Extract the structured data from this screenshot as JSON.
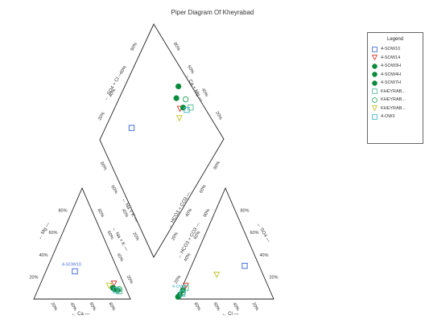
{
  "chart_data": {
    "type": "scatter",
    "subtype": "piper-diagram",
    "title": "Piper Diagram Of Kheyrabad",
    "ticks": {
      "percent": [
        "20%",
        "40%",
        "60%",
        "80%"
      ],
      "cation_left": [
        "80%",
        "60%",
        "40%",
        "20%"
      ],
      "cation_right": [
        "20%",
        "40%",
        "60%",
        "80%"
      ],
      "cation_bottom": [
        "20%",
        "40%",
        "60%",
        "80%"
      ],
      "anion_left": [
        "20%",
        "40%",
        "60%",
        "80%"
      ],
      "anion_right": [
        "20%",
        "40%",
        "60%",
        "80%"
      ],
      "anion_bottom": [
        "80%",
        "60%",
        "40%",
        "20%"
      ],
      "diamond_upper_left": [
        "20%",
        "40%",
        "60%",
        "80%"
      ],
      "diamond_upper_right": [
        "80%",
        "60%",
        "40%",
        "20%"
      ],
      "diamond_lower_left": [
        "80%",
        "60%",
        "40%",
        "20%"
      ],
      "diamond_lower_right": [
        "20%",
        "40%",
        "60%",
        "80%"
      ]
    },
    "axis_labels": {
      "cation_bottom": "Ca",
      "cation_left": "Mg",
      "cation_right": "Na + K",
      "anion_bottom": "Cl",
      "anion_left": "HCO3 + CO3",
      "anion_right": "SO4",
      "diamond_upper_left": "SO4 + Cl",
      "diamond_upper_right": "Ca + Mg",
      "diamond_lower_left": "Na + K",
      "diamond_lower_right": "HCO3 + CO3"
    },
    "series": [
      {
        "name": "4-SOW10",
        "marker": "square-open",
        "color": "#4a6fd8",
        "cation": {
          "Ca": 45,
          "Mg": 25
        },
        "anion": {
          "Cl": 55,
          "SO4": 30
        },
        "diamond": {
          "NaK": 30,
          "SO4Cl": 80
        }
      },
      {
        "name": "4-SOW14",
        "marker": "triangle-down-open",
        "color": "#d8463a",
        "cation": {
          "Ca": 10,
          "Mg": 14
        },
        "anion": {
          "Cl": 3,
          "SO4": 12
        },
        "diamond": {
          "NaK": 76,
          "SO4Cl": 50
        }
      },
      {
        "name": "4-SOW3H",
        "marker": "circle-filled",
        "color": "#0a8a3c",
        "cation": {
          "Ca": 13,
          "Mg": 10
        },
        "anion": {
          "Cl": 2,
          "SO4": 8
        },
        "diamond": {
          "NaK": 77,
          "SO4Cl": 58
        }
      },
      {
        "name": "4-SOW4H",
        "marker": "circle-filled",
        "color": "#0a8a3c",
        "cation": {
          "Ca": 12,
          "Mg": 9
        },
        "anion": {
          "Cl": 1,
          "SO4": 4
        },
        "diamond": {
          "NaK": 79,
          "SO4Cl": 48
        }
      },
      {
        "name": "4-SOW7H",
        "marker": "circle-filled",
        "color": "#0a8a3c",
        "cation": {
          "Ca": 9,
          "Mg": 8
        },
        "anion": {
          "Cl": 0,
          "SO4": 2
        },
        "diamond": {
          "NaK": 83,
          "SO4Cl": 62
        }
      },
      {
        "name": "KHEYRAB...",
        "marker": "square-open",
        "color": "#5fbf9a",
        "cation": {
          "Ca": 8,
          "Mg": 7
        },
        "anion": {
          "Cl": 4,
          "SO4": 10
        },
        "diamond": {
          "NaK": 85,
          "SO4Cl": 42
        }
      },
      {
        "name": "KHEYRAB...",
        "marker": "circle-open",
        "color": "#3aa86a",
        "cation": {
          "Ca": 7,
          "Mg": 9
        },
        "anion": {
          "Cl": 3,
          "SO4": 6
        },
        "diamond": {
          "NaK": 84,
          "SO4Cl": 50
        }
      },
      {
        "name": "KHEYRAB...",
        "marker": "triangle-down-open",
        "color": "#c8c837",
        "cation": {
          "Ca": 16,
          "Mg": 12
        },
        "anion": {
          "Cl": 30,
          "SO4": 22
        },
        "diamond": {
          "NaK": 72,
          "SO4Cl": 46
        }
      },
      {
        "name": "4-OW3",
        "marker": "square-open",
        "color": "#4ab8c8",
        "cation": {
          "Ca": 11,
          "Mg": 8
        },
        "anion": {
          "Cl": 3,
          "SO4": 5
        },
        "diamond": {
          "NaK": 81,
          "SO4Cl": 44
        }
      }
    ],
    "annotations": [
      {
        "text": "4-SOW10",
        "plot": "cation",
        "color": "#4a6fd8"
      },
      {
        "text": "4-OW3",
        "plot": "anion",
        "color": "#4ab8c8"
      }
    ],
    "legend_position": "right",
    "grid": false
  },
  "legend": {
    "title": "Legend"
  }
}
